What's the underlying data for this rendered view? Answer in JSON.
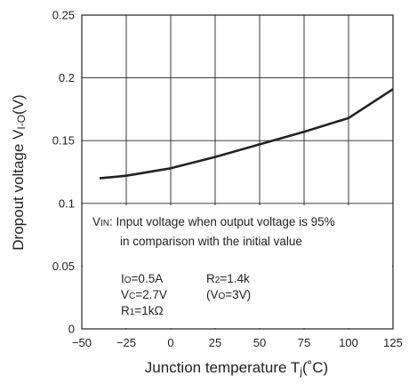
{
  "chart_data": {
    "type": "line",
    "title": "",
    "xlabel": {
      "main": "Junction temperature T",
      "sub": "j",
      "tail": "(˚C)"
    },
    "ylabel": {
      "main": "Dropout voltage V",
      "sub": "I-O",
      "tail": "(V)"
    },
    "xlim": [
      -50,
      125
    ],
    "ylim": [
      0,
      0.25
    ],
    "x_ticks": [
      -50,
      -25,
      0,
      25,
      50,
      75,
      100,
      125
    ],
    "y_ticks": [
      0,
      0.05,
      0.1,
      0.15,
      0.2,
      0.25
    ],
    "x_tick_labels": [
      "−50",
      "−25",
      "0",
      "25",
      "50",
      "75",
      "100",
      "125"
    ],
    "y_tick_labels": [
      "0",
      "0.05",
      "0.1",
      "0.15",
      "0.2",
      "0.25"
    ],
    "grid": true,
    "series": [
      {
        "x": [
          -40,
          -25,
          0,
          25,
          50,
          75,
          100,
          125
        ],
        "values": [
          0.12,
          0.122,
          0.128,
          0.137,
          0.147,
          0.157,
          0.168,
          0.191
        ]
      }
    ]
  },
  "notes": {
    "vin_symbol": "V",
    "vin_sub": "IN",
    "vin_text": ": Input voltage when output voltage is 95%",
    "vin_text2": "in comparison with the initial value",
    "io_sym": "I",
    "io_sub": "O",
    "io_val": "=0.5A",
    "vc_sym": "V",
    "vc_sub": "C",
    "vc_val": "=2.7V",
    "r1_sym": "R",
    "r1_sub": "1",
    "r1_val": "=1kΩ",
    "r2_sym": "R",
    "r2_sub": "2",
    "r2_val": "=1.4k",
    "vo_open": "(V",
    "vo_sub": "O",
    "vo_val": "=3V)"
  }
}
